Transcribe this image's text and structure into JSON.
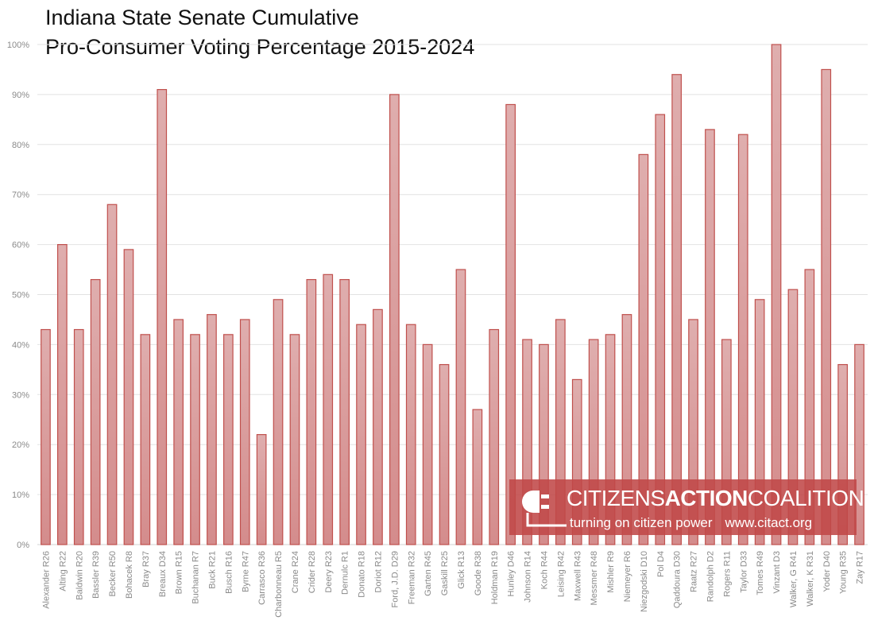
{
  "chart_data": {
    "type": "bar",
    "title": "Indiana State Senate Cumulative",
    "subtitle": "Pro-Consumer Voting Percentage 2015-2024",
    "xlabel": "",
    "ylabel": "",
    "ylim": [
      0,
      100
    ],
    "yticks": [
      "0%",
      "10%",
      "20%",
      "30%",
      "40%",
      "50%",
      "60%",
      "70%",
      "80%",
      "90%",
      "100%"
    ],
    "grid": true,
    "legend": "none",
    "bar_color": "#d99a9a",
    "bar_edge_color": "#c0504d",
    "categories": [
      "Alexander R26",
      "Alting R22",
      "Baldwin R20",
      "Bassler R39",
      "Becker R50",
      "Bohacek R8",
      "Bray R37",
      "Breaux D34",
      "Brown R15",
      "Buchanan R7",
      "Buck R21",
      "Busch R16",
      "Byrne R47",
      "Carrasco R36",
      "Charbonneau R5",
      "Crane R24",
      "Crider R28",
      "Deery R23",
      "Dernulc R1",
      "Donato R18",
      "Doriot R12",
      "Ford, J.D. D29",
      "Freeman R32",
      "Garten R45",
      "Gaskill R25",
      "Glick R13",
      "Goode R38",
      "Holdman R19",
      "Hunley D46",
      "Johnson R14",
      "Koch R44",
      "Leising R42",
      "Maxwell R43",
      "Messmer R48",
      "Mishler R9",
      "Niemeyer R6",
      "Niezgodski D10",
      "Pol D4",
      "Qaddoura D30",
      "Raatz R27",
      "Randolph D2",
      "Rogers R11",
      "Taylor D33",
      "Tomes R49",
      "Vinzant D3",
      "Walker, G R41",
      "Walker, K R31",
      "Yoder D40",
      "Young R35",
      "Zay R17"
    ],
    "values": [
      43,
      60,
      43,
      53,
      68,
      59,
      42,
      91,
      45,
      42,
      46,
      42,
      45,
      22,
      49,
      42,
      53,
      54,
      53,
      44,
      47,
      90,
      44,
      40,
      36,
      55,
      27,
      43,
      88,
      41,
      40,
      45,
      33,
      41,
      42,
      46,
      78,
      86,
      94,
      45,
      83,
      41,
      82,
      49,
      100,
      51,
      55,
      95,
      36,
      40
    ]
  },
  "logo": {
    "name_light_1": "CITIZENS",
    "name_bold": "ACTION",
    "name_light_2": "COALITION",
    "tagline": "turning on citizen power",
    "url": "www.citact.org"
  }
}
